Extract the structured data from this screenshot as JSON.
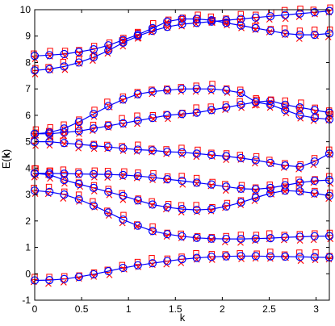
{
  "chart_data": {
    "type": "line",
    "title": "",
    "xlabel": "k",
    "ylabel_main": "E(",
    "ylabel_vec": "k",
    "ylabel_end": ")",
    "xlim": [
      0,
      3.1416
    ],
    "ylim": [
      -1,
      10
    ],
    "x_ticks": [
      0,
      0.5,
      1,
      1.5,
      2,
      2.5,
      3
    ],
    "x_tick_labels": [
      "0",
      "0.5",
      "1",
      "1.5",
      "2",
      "2.5",
      "3"
    ],
    "y_ticks": [
      -1,
      0,
      1,
      2,
      3,
      4,
      5,
      6,
      7,
      8,
      9,
      10
    ],
    "y_tick_labels": [
      "-1",
      "0",
      "1",
      "2",
      "3",
      "4",
      "5",
      "6",
      "7",
      "8",
      "9",
      "10"
    ],
    "colors": {
      "line": "#0000ff",
      "markers": "#ff0000",
      "axes": "#000000"
    },
    "x": [
      0,
      0.1571,
      0.3142,
      0.4712,
      0.6283,
      0.7854,
      0.9425,
      1.0996,
      1.2566,
      1.4137,
      1.5708,
      1.7279,
      1.885,
      2.042,
      2.1991,
      2.3562,
      2.5133,
      2.6704,
      2.8274,
      2.9845,
      3.1416
    ],
    "series": [
      {
        "values": [
          -0.25,
          -0.24,
          -0.2,
          -0.12,
          -0.02,
          0.1,
          0.22,
          0.32,
          0.4,
          0.48,
          0.55,
          0.6,
          0.64,
          0.66,
          0.67,
          0.67,
          0.66,
          0.65,
          0.64,
          0.63,
          0.62
        ]
      },
      {
        "values": [
          3.15,
          3.1,
          3.0,
          2.82,
          2.58,
          2.32,
          2.05,
          1.82,
          1.62,
          1.5,
          1.42,
          1.36,
          1.33,
          1.32,
          1.32,
          1.33,
          1.35,
          1.38,
          1.4,
          1.42,
          1.43
        ]
      },
      {
        "values": [
          3.8,
          3.75,
          3.55,
          3.4,
          3.25,
          3.1,
          2.95,
          2.78,
          2.62,
          2.52,
          2.45,
          2.42,
          2.45,
          2.55,
          2.7,
          2.88,
          3.05,
          3.15,
          3.12,
          3.05,
          2.95
        ]
      },
      {
        "values": [
          3.8,
          3.8,
          3.79,
          3.78,
          3.77,
          3.76,
          3.74,
          3.7,
          3.65,
          3.58,
          3.52,
          3.45,
          3.38,
          3.3,
          3.22,
          3.2,
          3.25,
          3.35,
          3.45,
          3.52,
          3.55
        ]
      },
      {
        "values": [
          5.0,
          5.0,
          4.95,
          4.9,
          4.85,
          4.8,
          4.75,
          4.7,
          4.67,
          4.62,
          4.6,
          4.55,
          4.5,
          4.45,
          4.38,
          4.3,
          4.2,
          4.1,
          4.05,
          4.25,
          4.55
        ]
      },
      {
        "values": [
          5.3,
          5.3,
          5.35,
          5.4,
          5.5,
          5.6,
          5.7,
          5.8,
          5.9,
          6.0,
          6.05,
          6.1,
          6.2,
          6.3,
          6.4,
          6.5,
          6.55,
          6.4,
          6.3,
          6.2,
          6.1
        ]
      },
      {
        "values": [
          5.3,
          5.35,
          5.5,
          5.75,
          6.05,
          6.35,
          6.6,
          6.8,
          6.9,
          6.95,
          7.0,
          7.0,
          7.0,
          6.95,
          6.85,
          6.5,
          6.4,
          6.2,
          6.0,
          5.9,
          5.85
        ]
      },
      {
        "values": [
          7.7,
          7.75,
          7.85,
          8.0,
          8.2,
          8.45,
          8.75,
          9.0,
          9.2,
          9.35,
          9.45,
          9.5,
          9.55,
          9.6,
          9.65,
          9.7,
          9.75,
          9.8,
          9.85,
          9.9,
          9.95
        ]
      },
      {
        "values": [
          8.25,
          8.28,
          8.32,
          8.4,
          8.5,
          8.65,
          8.85,
          9.05,
          9.3,
          9.55,
          9.65,
          9.65,
          9.6,
          9.5,
          9.4,
          9.3,
          9.2,
          9.1,
          9.05,
          9.05,
          9.1
        ]
      }
    ]
  }
}
